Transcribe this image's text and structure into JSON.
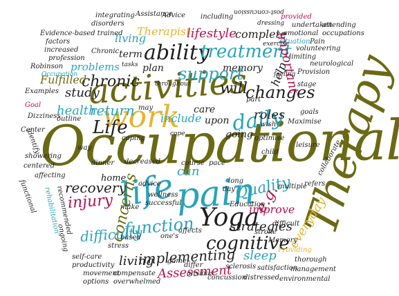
{
  "cloud": {
    "words": {
      "occupational": "Occupational",
      "therapy": "Therapy",
      "activities": "activities",
      "work": "work",
      "pain": "pain",
      "life_big": "life",
      "yoga": "Yoga",
      "daily": "daily",
      "ability": "ability",
      "treatment": "treatment",
      "support": "support",
      "chronic": "chronic",
      "changes": "changes",
      "cognitive": "cognitive",
      "function": "function",
      "quality": "Quality",
      "eg": "e.g.",
      "recovery": "recovery",
      "injury": "injury",
      "concerns": "concerns",
      "difficulty": "difficulty",
      "implementing": "implementing",
      "strategies": "strategies",
      "everyday": "everyday",
      "assessment": "Assessment",
      "living_low": "living",
      "sleep": "sleep",
      "improve": "improve",
      "roles": "roles",
      "return": "return",
      "health": "health",
      "life_small": "Life",
      "study": "study",
      "fulfilled": "Fulfilled",
      "problems": "problems",
      "lifestyle": "lifestyle",
      "therapist": "Therapist",
      "complete": "complete",
      "living_top": "living",
      "important": "important",
      "will": "will",
      "help": "help",
      "can": "can",
      "care": "care",
      "upon": "upon",
      "include": "include",
      "going": "going",
      "memory": "memory",
      "plan": "plan",
      "term": "term",
      "home": "home",
      "difficult": "difficult",
      "affecting": "affecting",
      "evidence_based": "Evidence-based trained",
      "factors": "factors",
      "increased": "increased",
      "profession": "profession",
      "integrating": "integrating",
      "disorders": "disorders",
      "assistance": "Assistance",
      "advice": "Advice",
      "including": "including",
      "post_concussion": "post-concussion",
      "provided": "provided",
      "undertaken": "undertaken",
      "dressing": "dressing",
      "emotional": "emotional",
      "situation": "situation",
      "exercise": "exercise",
      "pain_word": "Pain",
      "volunteering": "volunteering",
      "limiting": "limiting",
      "neurological": "neurological",
      "provision": "Provision",
      "feeling": "feeling",
      "attending": "attending",
      "occupations": "occupations",
      "chronic_small": "Chronic",
      "robinson": "Robinson",
      "occupation": "Occupation",
      "examples": "Examples",
      "dizziness": "Dizziness",
      "goal": "Goal",
      "center": "Center",
      "identify": "identify",
      "showering": "showering",
      "functional": "functional",
      "rehabilitation": "rehabilitation",
      "recommended": "recommended",
      "outline": "outline",
      "throughout": "throughout",
      "tasks": "tasks",
      "maximise": "Maximise",
      "goals": "goals",
      "leisure": "leisure",
      "optimise": "optimise",
      "cope": "cope",
      "coping": "coping",
      "decreased": "decreased",
      "course": "course",
      "pace": "pace",
      "dinner": "dinner",
      "advice_small": "advice",
      "education": "Education",
      "multiple": "multiple",
      "refers": "refers",
      "collaborate": "collaborate",
      "stroke": "stroke",
      "memory_small": "Memory",
      "sclerosis": "sclerosis",
      "providing": "Providing",
      "thorough": "thorough",
      "satisfaction": "satisfaction",
      "management": "management",
      "concussion": "concussion",
      "distressed": "distressed",
      "environmental": "environmental",
      "self_care": "self-care",
      "productivity": "productivity",
      "movement": "movement",
      "compensate": "compensate",
      "overwhelmed": "overwhelmed",
      "options": "options",
      "wellness": "wellness",
      "successful": "successful",
      "make": "make",
      "based": "based",
      "game": "game",
      "differ": "differ",
      "affects": "affects",
      "long": "long",
      "day": "day",
      "anxious": "anxious",
      "ones": "one's",
      "stress": "stress",
      "child": "child",
      "wish": "wish",
      "may": "may",
      "way": "way",
      "part": "part",
      "stage": "stage",
      "ongoing": "ongoing",
      "centered": "centered"
    }
  }
}
